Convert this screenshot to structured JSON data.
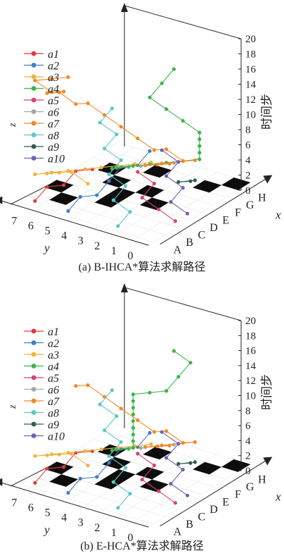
{
  "chart_data": [
    {
      "type": "3d-line",
      "caption": "(a) B-IHCA*算法求解路径",
      "x_label": "x",
      "y_label": "y",
      "z_label": "z",
      "time_label": "时间步",
      "x_ticks": [
        "A",
        "B",
        "C",
        "D",
        "E",
        "F",
        "G",
        "H"
      ],
      "y_ticks": [
        "0",
        "1",
        "2",
        "3",
        "4",
        "5",
        "6",
        "7"
      ],
      "time_ticks": [
        "0",
        "2",
        "4",
        "6",
        "8",
        "10",
        "12",
        "14",
        "16",
        "18",
        "20"
      ],
      "zlim": [
        0,
        20
      ],
      "legend": [
        {
          "label": "a1",
          "color": "#e03a3a"
        },
        {
          "label": "a2",
          "color": "#3f7fc4"
        },
        {
          "label": "a3",
          "color": "#f0b43c"
        },
        {
          "label": "a4",
          "color": "#3cb44b"
        },
        {
          "label": "a5",
          "color": "#d64564"
        },
        {
          "label": "a6",
          "color": "#a6a6a6"
        },
        {
          "label": "a7",
          "color": "#f08a24"
        },
        {
          "label": "a8",
          "color": "#5bc7c2"
        },
        {
          "label": "a9",
          "color": "#2f5d50"
        },
        {
          "label": "a10",
          "color": "#6b63b5"
        }
      ],
      "obstacles": [
        [
          1,
          6
        ],
        [
          2,
          4
        ],
        [
          3,
          2
        ],
        [
          3,
          4
        ],
        [
          4,
          3
        ],
        [
          5,
          6
        ],
        [
          6,
          4
        ],
        [
          6,
          1
        ],
        [
          7,
          0
        ],
        [
          2,
          7
        ],
        [
          4,
          5
        ]
      ],
      "series": [
        {
          "name": "a1",
          "points": [
            [
              0,
              7,
              0
            ],
            [
              1,
              7,
              1
            ],
            [
              1,
              6,
              2
            ],
            [
              2,
              6,
              3
            ],
            [
              2,
              5,
              4
            ]
          ]
        },
        {
          "name": "a2",
          "points": [
            [
              0,
              5,
              0
            ],
            [
              1,
              5,
              1
            ],
            [
              1,
              4,
              2
            ],
            [
              2,
              4,
              3
            ],
            [
              3,
              4,
              4
            ],
            [
              3,
              3,
              5
            ],
            [
              4,
              3,
              6
            ]
          ]
        },
        {
          "name": "a3",
          "points": [
            [
              3,
              6,
              0
            ],
            [
              3,
              7,
              1
            ],
            [
              2,
              7,
              2
            ],
            [
              1,
              7,
              3
            ],
            [
              0,
              7,
              4
            ],
            [
              0,
              6,
              5
            ],
            [
              0,
              5,
              6
            ],
            [
              0,
              4,
              7
            ],
            [
              0,
              3,
              8
            ],
            [
              0,
              2,
              9
            ],
            [
              0,
              1,
              10
            ],
            [
              0,
              0,
              11
            ]
          ]
        },
        {
          "name": "a4",
          "points": [
            [
              5,
              6,
              0
            ],
            [
              5,
              5,
              1
            ],
            [
              4,
              5,
              2
            ],
            [
              4,
              4,
              3
            ],
            [
              4,
              3,
              4
            ],
            [
              4,
              2,
              5
            ],
            [
              4,
              1,
              6
            ],
            [
              4,
              0,
              7
            ],
            [
              4,
              0,
              8
            ],
            [
              4,
              0,
              9
            ],
            [
              4,
              0,
              10
            ],
            [
              4,
              0,
              11
            ],
            [
              4,
              1,
              12
            ],
            [
              4,
              2,
              13
            ],
            [
              4,
              3,
              14
            ],
            [
              5,
              3,
              15
            ],
            [
              6,
              3,
              16
            ]
          ]
        },
        {
          "name": "a5",
          "points": [
            [
              2,
              0,
              0
            ],
            [
              2,
              1,
              1
            ],
            [
              2,
              2,
              2
            ],
            [
              3,
              2,
              3
            ],
            [
              3,
              3,
              4
            ]
          ]
        },
        {
          "name": "a6",
          "points": [
            [
              6,
              5,
              0
            ],
            [
              6,
              4,
              1
            ],
            [
              6,
              3,
              2
            ],
            [
              5,
              3,
              3
            ]
          ]
        },
        {
          "name": "a7",
          "points": [
            [
              7,
              4,
              0
            ],
            [
              6,
              4,
              1
            ],
            [
              5,
              4,
              2
            ],
            [
              5,
              3,
              3
            ],
            [
              5,
              2,
              4
            ],
            [
              5,
              1,
              5
            ],
            [
              4,
              1,
              6
            ],
            [
              4,
              2,
              7
            ],
            [
              3,
              2,
              8
            ],
            [
              3,
              3,
              9
            ],
            [
              3,
              4,
              10
            ],
            [
              3,
              5,
              11
            ],
            [
              3,
              6,
              12
            ],
            [
              2,
              6,
              13
            ],
            [
              2,
              7,
              14
            ],
            [
              1,
              7,
              15
            ],
            [
              1,
              6,
              16
            ],
            [
              0,
              6,
              17
            ],
            [
              0,
              7,
              18
            ],
            [
              0,
              6,
              19
            ],
            [
              0,
              5,
              20
            ]
          ]
        },
        {
          "name": "a8",
          "points": [
            [
              0,
              2,
              0
            ],
            [
              1,
              2,
              1
            ],
            [
              1,
              3,
              2
            ],
            [
              2,
              3,
              3
            ],
            [
              2,
              4,
              4
            ],
            [
              3,
              4,
              5
            ],
            [
              3,
              5,
              6
            ],
            [
              4,
              5,
              7
            ],
            [
              4,
              6,
              8
            ],
            [
              5,
              6,
              9
            ]
          ]
        },
        {
          "name": "a9",
          "points": [
            [
              6,
              2,
              0
            ],
            [
              5,
              2,
              1
            ],
            [
              5,
              1,
              2
            ]
          ]
        },
        {
          "name": "a10",
          "points": [
            [
              3,
              0,
              0
            ],
            [
              3,
              1,
              1
            ],
            [
              4,
              1,
              2
            ],
            [
              4,
              2,
              3
            ],
            [
              5,
              2,
              4
            ],
            [
              5,
              3,
              5
            ]
          ]
        }
      ]
    },
    {
      "type": "3d-line",
      "caption": "(b) E-HCA*算法求解路径",
      "x_label": "x",
      "y_label": "y",
      "z_label": "z",
      "time_label": "时间步",
      "x_ticks": [
        "A",
        "B",
        "C",
        "D",
        "E",
        "F",
        "G",
        "H"
      ],
      "y_ticks": [
        "0",
        "1",
        "2",
        "3",
        "4",
        "5",
        "6",
        "7"
      ],
      "time_ticks": [
        "0",
        "2",
        "4",
        "6",
        "8",
        "10",
        "12",
        "14",
        "16",
        "18",
        "20"
      ],
      "zlim": [
        0,
        20
      ],
      "legend": [
        {
          "label": "a1",
          "color": "#e03a3a"
        },
        {
          "label": "a2",
          "color": "#3f7fc4"
        },
        {
          "label": "a3",
          "color": "#f0b43c"
        },
        {
          "label": "a4",
          "color": "#3cb44b"
        },
        {
          "label": "a5",
          "color": "#d64564"
        },
        {
          "label": "a6",
          "color": "#a6a6a6"
        },
        {
          "label": "a7",
          "color": "#f08a24"
        },
        {
          "label": "a8",
          "color": "#5bc7c2"
        },
        {
          "label": "a9",
          "color": "#2f5d50"
        },
        {
          "label": "a10",
          "color": "#6b63b5"
        }
      ],
      "obstacles": [
        [
          1,
          6
        ],
        [
          2,
          4
        ],
        [
          3,
          2
        ],
        [
          3,
          4
        ],
        [
          4,
          3
        ],
        [
          5,
          6
        ],
        [
          6,
          4
        ],
        [
          6,
          1
        ],
        [
          7,
          0
        ],
        [
          2,
          7
        ],
        [
          4,
          5
        ]
      ],
      "series": [
        {
          "name": "a1",
          "points": [
            [
              0,
              7,
              0
            ],
            [
              1,
              7,
              1
            ],
            [
              1,
              6,
              2
            ],
            [
              2,
              6,
              3
            ],
            [
              2,
              5,
              4
            ]
          ]
        },
        {
          "name": "a2",
          "points": [
            [
              0,
              5,
              0
            ],
            [
              1,
              5,
              1
            ],
            [
              1,
              4,
              2
            ],
            [
              2,
              4,
              3
            ],
            [
              3,
              4,
              4
            ],
            [
              3,
              3,
              5
            ],
            [
              4,
              3,
              6
            ]
          ]
        },
        {
          "name": "a3",
          "points": [
            [
              3,
              6,
              0
            ],
            [
              3,
              7,
              1
            ],
            [
              2,
              7,
              2
            ],
            [
              1,
              7,
              3
            ],
            [
              0,
              7,
              4
            ],
            [
              0,
              6,
              5
            ],
            [
              0,
              5,
              6
            ],
            [
              0,
              4,
              7
            ],
            [
              0,
              3,
              8
            ],
            [
              0,
              2,
              9
            ],
            [
              0,
              1,
              10
            ],
            [
              0,
              0,
              11
            ]
          ]
        },
        {
          "name": "a4",
          "points": [
            [
              5,
              6,
              0
            ],
            [
              5,
              5,
              1
            ],
            [
              4,
              5,
              2
            ],
            [
              4,
              4,
              3
            ],
            [
              4,
              4,
              4
            ],
            [
              4,
              4,
              5
            ],
            [
              4,
              4,
              6
            ],
            [
              4,
              4,
              7
            ],
            [
              4,
              4,
              8
            ],
            [
              4,
              4,
              9
            ],
            [
              4,
              4,
              10
            ],
            [
              4,
              4,
              11
            ],
            [
              4,
              3,
              12
            ],
            [
              4,
              2,
              13
            ],
            [
              5,
              2,
              14
            ],
            [
              6,
              2,
              15
            ],
            [
              6,
              3,
              16
            ]
          ]
        },
        {
          "name": "a5",
          "points": [
            [
              2,
              0,
              0
            ],
            [
              2,
              1,
              1
            ],
            [
              2,
              2,
              2
            ],
            [
              3,
              2,
              3
            ],
            [
              3,
              3,
              4
            ]
          ]
        },
        {
          "name": "a6",
          "points": [
            [
              6,
              5,
              0
            ],
            [
              6,
              4,
              1
            ],
            [
              6,
              3,
              2
            ],
            [
              5,
              3,
              3
            ]
          ]
        },
        {
          "name": "a7",
          "points": [
            [
              7,
              4,
              0
            ],
            [
              6,
              4,
              1
            ],
            [
              5,
              4,
              2
            ],
            [
              5,
              3,
              3
            ],
            [
              5,
              2,
              4
            ],
            [
              5,
              1,
              5
            ],
            [
              4,
              1,
              6
            ],
            [
              4,
              2,
              7
            ],
            [
              3,
              2,
              8
            ],
            [
              3,
              3,
              9
            ],
            [
              3,
              4,
              10
            ],
            [
              3,
              5,
              11
            ],
            [
              3,
              6,
              12
            ],
            [
              2,
              6,
              13
            ]
          ]
        },
        {
          "name": "a8",
          "points": [
            [
              0,
              2,
              0
            ],
            [
              1,
              2,
              1
            ],
            [
              1,
              3,
              2
            ],
            [
              2,
              3,
              3
            ],
            [
              2,
              4,
              4
            ],
            [
              3,
              4,
              5
            ],
            [
              3,
              5,
              6
            ],
            [
              4,
              5,
              7
            ],
            [
              4,
              6,
              8
            ],
            [
              5,
              6,
              9
            ]
          ]
        },
        {
          "name": "a9",
          "points": [
            [
              6,
              2,
              0
            ],
            [
              5,
              2,
              1
            ],
            [
              5,
              1,
              2
            ]
          ]
        },
        {
          "name": "a10",
          "points": [
            [
              3,
              0,
              0
            ],
            [
              3,
              1,
              1
            ],
            [
              4,
              1,
              2
            ],
            [
              4,
              2,
              3
            ],
            [
              5,
              2,
              4
            ],
            [
              5,
              3,
              5
            ]
          ]
        }
      ]
    }
  ]
}
